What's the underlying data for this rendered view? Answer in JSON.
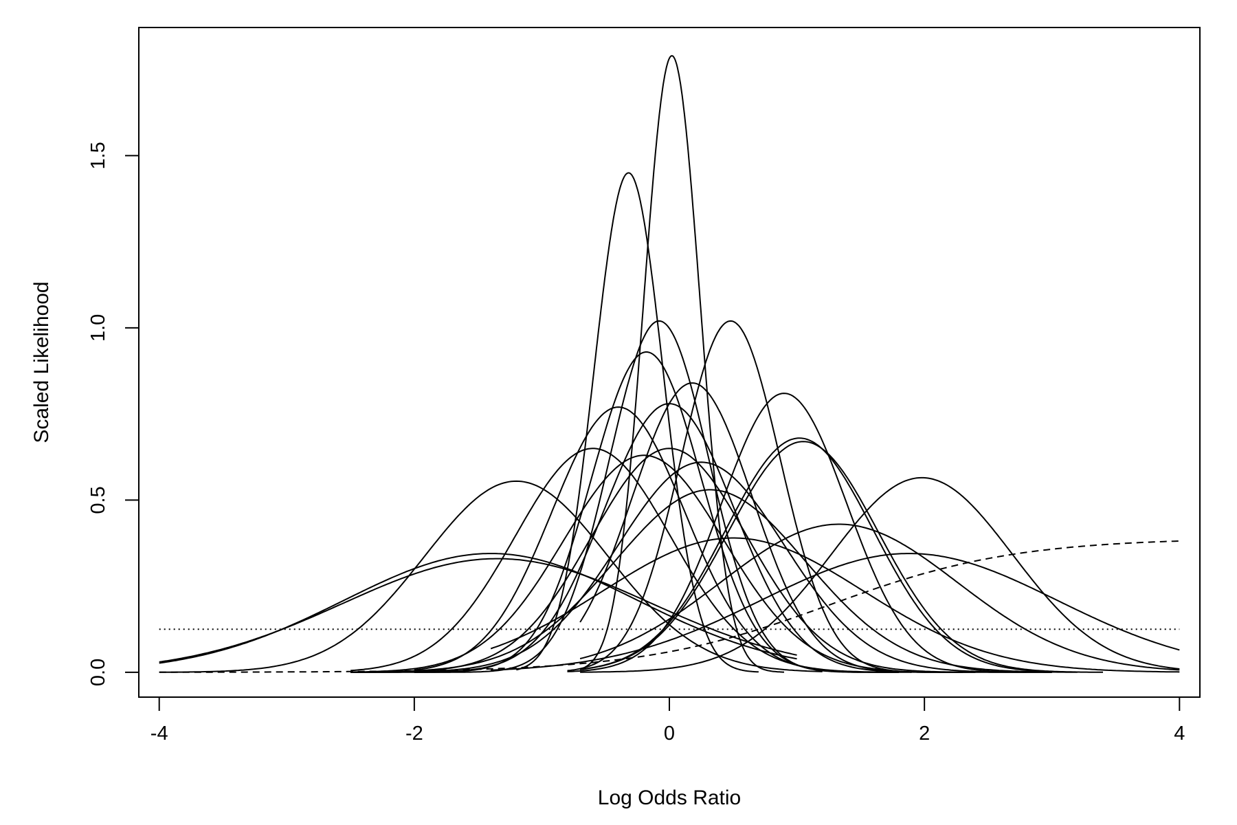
{
  "chart_data": {
    "type": "line",
    "title": "",
    "xlabel": "Log Odds Ratio",
    "ylabel": "Scaled Likelihood",
    "xlim": [
      -4.16,
      4.16
    ],
    "ylim": [
      -0.072,
      1.872
    ],
    "x_ticks": [
      -4,
      -2,
      0,
      2,
      4
    ],
    "x_tick_labels": [
      "-4",
      "-2",
      "0",
      "2",
      "4"
    ],
    "y_ticks": [
      0.0,
      0.5,
      1.0,
      1.5
    ],
    "y_tick_labels": [
      "0.0",
      "0.5",
      "1.0",
      "1.5"
    ],
    "grid": false,
    "legend": "none",
    "line_color": "#000000",
    "curve_shape": "normal density, scaled",
    "series": [
      {
        "mean": 0.02,
        "sd": 0.22,
        "peak": 1.79,
        "x_range": [
          -0.7,
          0.9
        ]
      },
      {
        "mean": -0.32,
        "sd": 0.27,
        "peak": 1.45,
        "x_range": [
          -1.2,
          0.7
        ]
      },
      {
        "mean": -0.08,
        "sd": 0.39,
        "peak": 1.02,
        "x_range": [
          -2.0,
          1.8
        ]
      },
      {
        "mean": 0.48,
        "sd": 0.39,
        "peak": 1.02,
        "x_range": [
          -0.8,
          2.2
        ]
      },
      {
        "mean": -0.18,
        "sd": 0.43,
        "peak": 0.93,
        "x_range": [
          -2.0,
          1.8
        ]
      },
      {
        "mean": 0.18,
        "sd": 0.47,
        "peak": 0.84,
        "x_range": [
          -0.7,
          2.4
        ]
      },
      {
        "mean": 0.9,
        "sd": 0.49,
        "peak": 0.81,
        "x_range": [
          -0.8,
          3.0
        ]
      },
      {
        "mean": -0.0,
        "sd": 0.51,
        "peak": 0.78,
        "x_range": [
          -2.5,
          2.3
        ]
      },
      {
        "mean": -0.4,
        "sd": 0.52,
        "peak": 0.77,
        "x_range": [
          -2.0,
          1.2
        ]
      },
      {
        "mean": 1.02,
        "sd": 0.58,
        "peak": 0.68,
        "x_range": [
          -0.7,
          3.0
        ]
      },
      {
        "mean": 1.05,
        "sd": 0.59,
        "peak": 0.67,
        "x_range": [
          -0.7,
          3.4
        ]
      },
      {
        "mean": -0.6,
        "sd": 0.61,
        "peak": 0.65,
        "x_range": [
          -2.5,
          1.9
        ]
      },
      {
        "mean": 0.0,
        "sd": 0.61,
        "peak": 0.65,
        "x_range": [
          -2.5,
          3.0
        ]
      },
      {
        "mean": -0.2,
        "sd": 0.63,
        "peak": 0.63,
        "x_range": [
          -2.5,
          1.7
        ]
      },
      {
        "mean": 0.25,
        "sd": 0.65,
        "peak": 0.61,
        "x_range": [
          -2.5,
          2.8
        ]
      },
      {
        "mean": -1.2,
        "sd": 0.72,
        "peak": 0.555,
        "x_range": [
          -4.0,
          1.2
        ]
      },
      {
        "mean": 1.98,
        "sd": 0.71,
        "peak": 0.565,
        "x_range": [
          -0.7,
          4.0
        ]
      },
      {
        "mean": 0.32,
        "sd": 0.75,
        "peak": 0.53,
        "x_range": [
          -2.5,
          3.2
        ]
      },
      {
        "mean": 1.33,
        "sd": 0.93,
        "peak": 0.43,
        "x_range": [
          -0.7,
          4.0
        ]
      },
      {
        "mean": 0.5,
        "sd": 1.02,
        "peak": 0.39,
        "x_range": [
          -1.4,
          4.0
        ]
      },
      {
        "mean": -1.4,
        "sd": 1.15,
        "peak": 0.345,
        "x_range": [
          -4.0,
          1.0
        ]
      },
      {
        "mean": -1.35,
        "sd": 1.21,
        "peak": 0.33,
        "x_range": [
          -4.0,
          1.0
        ]
      },
      {
        "mean": 1.88,
        "sd": 1.16,
        "peak": 0.345,
        "x_range": [
          -1.4,
          4.0
        ]
      }
    ],
    "reference_lines": [
      {
        "style": "dotted",
        "type": "constant",
        "y": 0.125,
        "x_range": [
          -4,
          4
        ]
      },
      {
        "style": "dashed",
        "type": "logistic",
        "upper": 0.39,
        "midpoint": 1.25,
        "scale": 0.73,
        "x_range": [
          -4,
          4
        ]
      }
    ]
  }
}
